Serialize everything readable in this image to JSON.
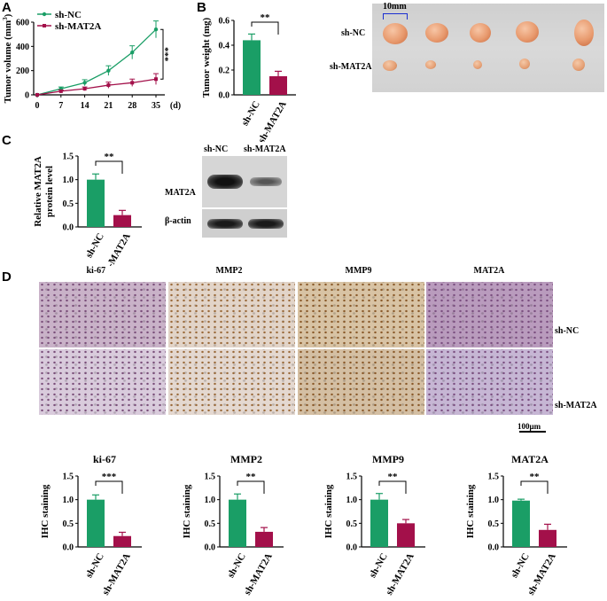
{
  "panels": {
    "A": "A",
    "B": "B",
    "C": "C",
    "D": "D"
  },
  "colors": {
    "nc": "#1a9e66",
    "mat2a": "#a3104a"
  },
  "groups": {
    "nc": "sh-NC",
    "mat2a": "sh-MAT2A"
  },
  "chart_data": [
    {
      "id": "A",
      "type": "line",
      "ylabel": "Tumor volume (mm",
      "ylabel_sup": "3",
      "ylabel_end": ")",
      "xlabel_unit": "(d)",
      "x": [
        0,
        7,
        14,
        21,
        28,
        35
      ],
      "ylim": [
        0,
        600
      ],
      "yticks": [
        "0",
        "200",
        "400",
        "600"
      ],
      "series": [
        {
          "name": "sh-NC",
          "values": [
            0,
            50,
            100,
            200,
            350,
            540
          ],
          "err": [
            0,
            15,
            25,
            40,
            55,
            70
          ]
        },
        {
          "name": "sh-MAT2A",
          "values": [
            0,
            30,
            50,
            80,
            100,
            130
          ],
          "err": [
            0,
            10,
            15,
            25,
            30,
            45
          ]
        }
      ],
      "significance": "***"
    },
    {
      "id": "B",
      "type": "bar",
      "ylabel": "Tumor weight (mg)",
      "categories": [
        "sh-NC",
        "sh-MAT2A"
      ],
      "values": [
        0.44,
        0.15
      ],
      "err": [
        0.05,
        0.04
      ],
      "ylim": [
        0,
        0.6
      ],
      "yticks": [
        "0.0",
        "0.2",
        "0.4",
        "0.6"
      ],
      "significance": "**"
    },
    {
      "id": "C",
      "type": "bar",
      "ylabel_line1": "Relative MAT2A",
      "ylabel_line2": "protein level",
      "categories": [
        "sh-NC",
        "sh-MAT2A"
      ],
      "values": [
        1.0,
        0.25
      ],
      "err": [
        0.12,
        0.1
      ],
      "ylim": [
        0,
        1.5
      ],
      "yticks": [
        "0.0",
        "0.5",
        "1.0",
        "1.5"
      ],
      "significance": "**"
    },
    {
      "id": "D1",
      "type": "bar",
      "title": "ki-67",
      "ylabel": "IHC staining",
      "categories": [
        "sh-NC",
        "sh-MAT2A"
      ],
      "values": [
        1.0,
        0.23
      ],
      "err": [
        0.1,
        0.08
      ],
      "ylim": [
        0,
        1.5
      ],
      "yticks": [
        "0.0",
        "0.5",
        "1.0",
        "1.5"
      ],
      "significance": "***"
    },
    {
      "id": "D2",
      "type": "bar",
      "title": "MMP2",
      "ylabel": "IHC staining",
      "categories": [
        "sh-NC",
        "sh-MAT2A"
      ],
      "values": [
        1.0,
        0.32
      ],
      "err": [
        0.12,
        0.09
      ],
      "ylim": [
        0,
        1.5
      ],
      "yticks": [
        "0.0",
        "0.5",
        "1.0",
        "1.5"
      ],
      "significance": "**"
    },
    {
      "id": "D3",
      "type": "bar",
      "title": "MMP9",
      "ylabel": "IHC staining",
      "categories": [
        "sh-NC",
        "sh-MAT2A"
      ],
      "values": [
        1.0,
        0.5
      ],
      "err": [
        0.13,
        0.08
      ],
      "ylim": [
        0,
        1.5
      ],
      "yticks": [
        "0.0",
        "0.5",
        "1.0",
        "1.5"
      ],
      "significance": "**"
    },
    {
      "id": "D4",
      "type": "bar",
      "title": "MAT2A",
      "ylabel": "IHC staining",
      "categories": [
        "sh-NC",
        "sh-MAT2A"
      ],
      "values": [
        0.98,
        0.36
      ],
      "err": [
        0.03,
        0.12
      ],
      "ylim": [
        0,
        1.5
      ],
      "yticks": [
        "0.0",
        "0.5",
        "1.0",
        "1.5"
      ],
      "significance": "**"
    }
  ],
  "tumor_photo": {
    "scale": "10mm",
    "row1": "sh-NC",
    "row2": "sh-MAT2A"
  },
  "western": {
    "col1": "sh-NC",
    "col2": "sh-MAT2A",
    "band1": "MAT2A",
    "band2": "β-actin"
  },
  "ihc": {
    "cols": [
      "ki-67",
      "MMP2",
      "MMP9",
      "MAT2A"
    ],
    "row1": "sh-NC",
    "row2": "sh-MAT2A",
    "scale": "100μm"
  }
}
